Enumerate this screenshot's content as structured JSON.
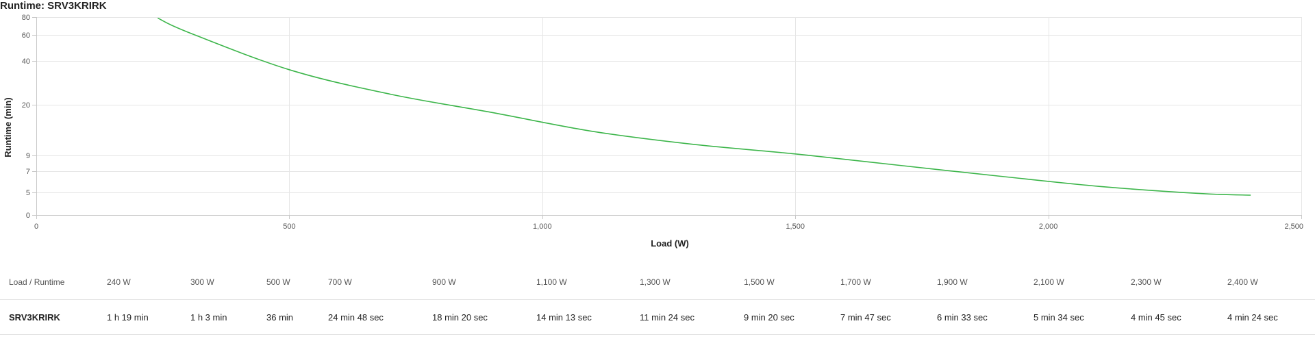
{
  "page_title": "Runtime: SRV3KRIRK",
  "chart_data": {
    "type": "line",
    "title": "Runtime: SRV3KRIRK",
    "xlabel": "Load (W)",
    "ylabel": "Runtime (min)",
    "xlim": [
      0,
      2500
    ],
    "x_ticks": [
      0,
      500,
      1000,
      1500,
      2000,
      2500
    ],
    "x_tick_labels": [
      "0",
      "500",
      "1,000",
      "1,500",
      "2,000",
      "2,500"
    ],
    "y_ticks": [
      0,
      5,
      7,
      9,
      20,
      40,
      60,
      80
    ],
    "y_tick_labels": [
      "0",
      "5",
      "7",
      "9",
      "20",
      "40",
      "60",
      "80"
    ],
    "y_scale": "nonlinear (square-root style)",
    "grid": true,
    "line_color": "#3cb54a",
    "series": [
      {
        "x": [
          240,
          300,
          500,
          700,
          900,
          1100,
          1300,
          1500,
          1700,
          1900,
          2100,
          2300,
          2400
        ],
        "y": [
          79,
          63,
          36,
          24.8,
          18.33,
          14.22,
          11.4,
          9.33,
          7.78,
          6.55,
          5.57,
          4.75,
          4.4
        ]
      }
    ]
  },
  "table": {
    "header_label": "Load / Runtime",
    "loads": [
      "240 W",
      "300 W",
      "500 W",
      "700 W",
      "900 W",
      "1,100 W",
      "1,300 W",
      "1,500 W",
      "1,700 W",
      "1,900 W",
      "2,100 W",
      "2,300 W",
      "2,400 W"
    ],
    "row_label": "SRV3KRIRK",
    "runtimes": [
      "1 h 19 min",
      "1 h 3 min",
      "36 min",
      "24 min 48 sec",
      "18 min 20 sec",
      "14 min 13 sec",
      "11 min 24 sec",
      "9 min 20 sec",
      "7 min 47 sec",
      "6 min 33 sec",
      "5 min 34 sec",
      "4 min 45 sec",
      "4 min 24 sec"
    ]
  }
}
